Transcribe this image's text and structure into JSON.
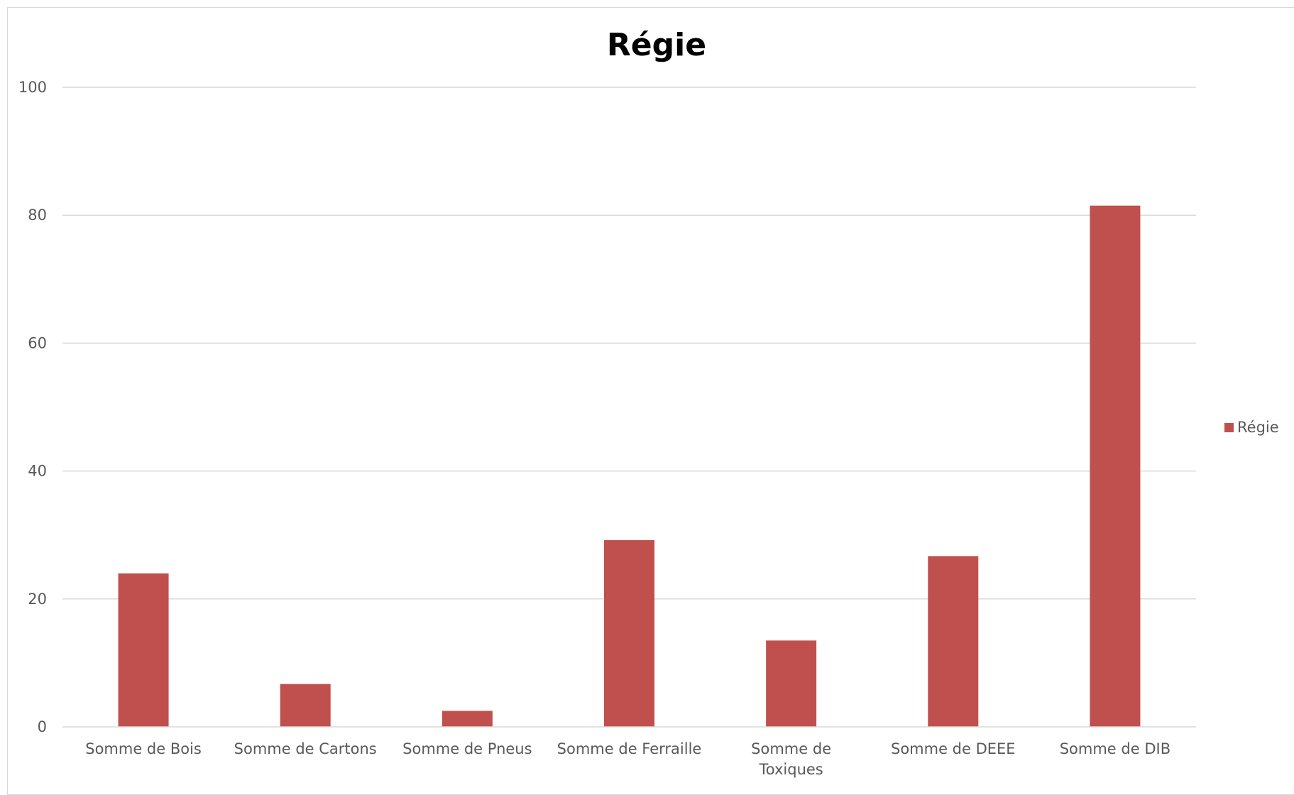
{
  "chart_data": {
    "type": "bar",
    "title": "Régie",
    "xlabel": "",
    "ylabel": "",
    "categories": [
      "Somme de Bois",
      "Somme de Cartons",
      "Somme de Pneus",
      "Somme de Ferraille",
      "Somme de Toxiques",
      "Somme de DEEE",
      "Somme de DIB"
    ],
    "category_lines": [
      [
        "Somme de Bois"
      ],
      [
        "Somme de Cartons"
      ],
      [
        "Somme de Pneus"
      ],
      [
        "Somme de Ferraille"
      ],
      [
        "Somme de",
        "Toxiques"
      ],
      [
        "Somme de DEEE"
      ],
      [
        "Somme de DIB"
      ]
    ],
    "series": [
      {
        "name": "Régie",
        "color": "#c0504d",
        "values": [
          24,
          6.7,
          2.5,
          29.2,
          13.5,
          26.7,
          81.5
        ]
      }
    ],
    "ylim": [
      0,
      100
    ],
    "yticks": [
      0,
      20,
      40,
      60,
      80,
      100
    ],
    "grid": true,
    "legend_position": "right"
  }
}
